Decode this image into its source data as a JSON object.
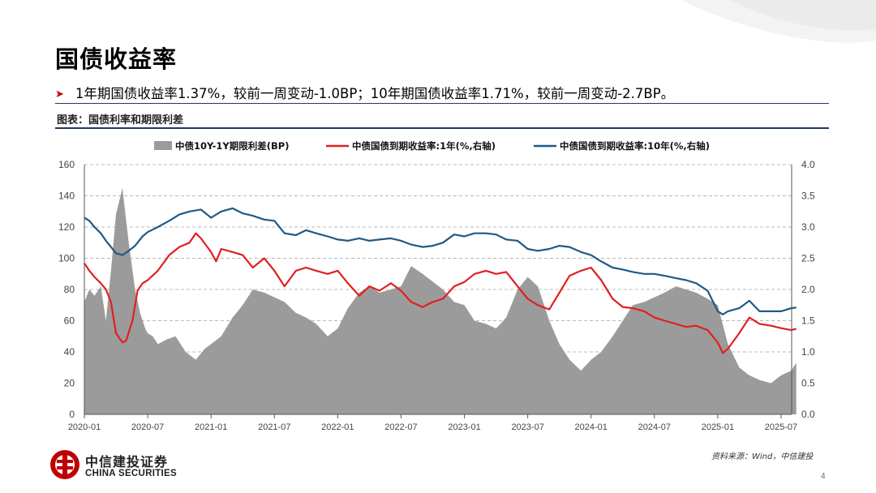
{
  "slide": {
    "title": "国债收益率",
    "bullet": "1年期国债收益率1.37%，较前一周变动-1.0BP；10年期国债收益率1.71%，较前一周变动-2.7BP。",
    "chart_caption": "图表：国债利率和期限利差",
    "source": "资料来源：Wind，中信建投",
    "page_number": "4",
    "logo_cn": "中信建投证券",
    "logo_en": "CHINA SECURITIES"
  },
  "colors": {
    "spread_fill": "#9b9b9b",
    "y1_line": "#e02020",
    "y10_line": "#1f5a87",
    "accent": "#c00000",
    "rule": "#1f3864"
  },
  "chart_data": {
    "type": "area",
    "x_ticks": [
      "2020-01",
      "2020-07",
      "2021-01",
      "2021-07",
      "2022-01",
      "2022-07",
      "2023-01",
      "2023-07",
      "2024-01",
      "2024-07",
      "2025-01",
      "2025-07"
    ],
    "x_range": [
      "2020-01",
      "2025-08"
    ],
    "y_left": {
      "range": [
        0,
        160
      ],
      "ticks": [
        "0",
        "20",
        "40",
        "60",
        "80",
        "100",
        "120",
        "140",
        "160"
      ]
    },
    "y_right": {
      "range": [
        0,
        4.0
      ],
      "ticks": [
        "0.0",
        "0.5",
        "1.0",
        "1.5",
        "2.0",
        "2.5",
        "3.0",
        "3.5",
        "4.0"
      ]
    },
    "grid": "horizontal-dashed",
    "legend_position": "top",
    "series": [
      {
        "name": "中债10Y-1Y期限利差(BP)",
        "type": "area",
        "axis": "left",
        "x": [
          2020.0,
          2020.04,
          2020.08,
          2020.13,
          2020.17,
          2020.21,
          2020.25,
          2020.3,
          2020.35,
          2020.4,
          2020.44,
          2020.48,
          2020.5,
          2020.54,
          2020.58,
          2020.65,
          2020.72,
          2020.8,
          2020.88,
          2020.95,
          2021.0,
          2021.08,
          2021.17,
          2021.25,
          2021.33,
          2021.42,
          2021.5,
          2021.58,
          2021.67,
          2021.75,
          2021.83,
          2021.92,
          2022.0,
          2022.08,
          2022.17,
          2022.25,
          2022.33,
          2022.42,
          2022.5,
          2022.58,
          2022.67,
          2022.75,
          2022.83,
          2022.92,
          2023.0,
          2023.08,
          2023.17,
          2023.25,
          2023.33,
          2023.42,
          2023.5,
          2023.58,
          2023.67,
          2023.75,
          2023.83,
          2023.92,
          2024.0,
          2024.08,
          2024.17,
          2024.25,
          2024.33,
          2024.42,
          2024.5,
          2024.58,
          2024.67,
          2024.75,
          2024.83,
          2024.92,
          2025.0,
          2025.08,
          2025.17,
          2025.25,
          2025.33,
          2025.42,
          2025.5,
          2025.58,
          2025.62
        ],
        "values": [
          72,
          80,
          76,
          82,
          60,
          92,
          128,
          145,
          110,
          80,
          65,
          55,
          52,
          50,
          45,
          48,
          50,
          40,
          35,
          42,
          45,
          50,
          62,
          70,
          80,
          78,
          75,
          72,
          65,
          62,
          58,
          50,
          55,
          68,
          78,
          82,
          78,
          80,
          82,
          95,
          90,
          85,
          80,
          72,
          70,
          60,
          58,
          55,
          62,
          80,
          88,
          82,
          60,
          45,
          35,
          28,
          35,
          40,
          50,
          60,
          70,
          72,
          75,
          78,
          82,
          80,
          78,
          74,
          70,
          45,
          30,
          25,
          22,
          20,
          25,
          28,
          33
        ]
      },
      {
        "name": "中债国债到期收益率:1年(%,右轴)",
        "type": "line",
        "axis": "right",
        "x": [
          2020.0,
          2020.04,
          2020.08,
          2020.13,
          2020.17,
          2020.21,
          2020.25,
          2020.3,
          2020.33,
          2020.38,
          2020.42,
          2020.46,
          2020.5,
          2020.58,
          2020.67,
          2020.75,
          2020.83,
          2020.88,
          2020.92,
          2021.0,
          2021.04,
          2021.08,
          2021.17,
          2021.25,
          2021.33,
          2021.42,
          2021.5,
          2021.58,
          2021.67,
          2021.75,
          2021.83,
          2021.92,
          2022.0,
          2022.08,
          2022.17,
          2022.25,
          2022.33,
          2022.42,
          2022.5,
          2022.58,
          2022.67,
          2022.75,
          2022.83,
          2022.92,
          2023.0,
          2023.08,
          2023.17,
          2023.25,
          2023.33,
          2023.42,
          2023.5,
          2023.58,
          2023.67,
          2023.75,
          2023.83,
          2023.92,
          2024.0,
          2024.08,
          2024.17,
          2024.25,
          2024.33,
          2024.42,
          2024.5,
          2024.58,
          2024.67,
          2024.75,
          2024.83,
          2024.92,
          2025.0,
          2025.04,
          2025.08,
          2025.17,
          2025.25,
          2025.33,
          2025.42,
          2025.5,
          2025.58,
          2025.62
        ],
        "values": [
          2.42,
          2.3,
          2.2,
          2.1,
          2.0,
          1.8,
          1.3,
          1.15,
          1.18,
          1.5,
          1.98,
          2.1,
          2.15,
          2.3,
          2.55,
          2.68,
          2.75,
          2.9,
          2.82,
          2.6,
          2.45,
          2.65,
          2.6,
          2.55,
          2.35,
          2.5,
          2.3,
          2.05,
          2.3,
          2.35,
          2.3,
          2.25,
          2.3,
          2.1,
          1.9,
          2.05,
          1.98,
          2.1,
          1.98,
          1.8,
          1.72,
          1.8,
          1.85,
          2.05,
          2.12,
          2.25,
          2.3,
          2.25,
          2.28,
          2.05,
          1.85,
          1.75,
          1.68,
          1.95,
          2.22,
          2.3,
          2.35,
          2.15,
          1.85,
          1.72,
          1.7,
          1.65,
          1.55,
          1.5,
          1.45,
          1.4,
          1.42,
          1.35,
          1.15,
          0.98,
          1.05,
          1.3,
          1.55,
          1.45,
          1.42,
          1.38,
          1.35,
          1.37
        ]
      },
      {
        "name": "中债国债到期收益率:10年(%,右轴)",
        "type": "line",
        "axis": "right",
        "x": [
          2020.0,
          2020.04,
          2020.08,
          2020.13,
          2020.17,
          2020.21,
          2020.25,
          2020.3,
          2020.35,
          2020.4,
          2020.46,
          2020.5,
          2020.58,
          2020.67,
          2020.75,
          2020.83,
          2020.92,
          2021.0,
          2021.08,
          2021.17,
          2021.25,
          2021.33,
          2021.42,
          2021.5,
          2021.58,
          2021.67,
          2021.75,
          2021.83,
          2021.92,
          2022.0,
          2022.08,
          2022.17,
          2022.25,
          2022.33,
          2022.42,
          2022.5,
          2022.58,
          2022.67,
          2022.75,
          2022.83,
          2022.92,
          2023.0,
          2023.08,
          2023.17,
          2023.25,
          2023.33,
          2023.42,
          2023.5,
          2023.58,
          2023.67,
          2023.75,
          2023.83,
          2023.92,
          2024.0,
          2024.08,
          2024.17,
          2024.25,
          2024.33,
          2024.42,
          2024.5,
          2024.58,
          2024.67,
          2024.75,
          2024.83,
          2024.92,
          2025.0,
          2025.04,
          2025.08,
          2025.17,
          2025.25,
          2025.33,
          2025.42,
          2025.5,
          2025.58,
          2025.62
        ],
        "values": [
          3.15,
          3.1,
          3.0,
          2.9,
          2.78,
          2.68,
          2.58,
          2.55,
          2.62,
          2.7,
          2.85,
          2.92,
          3.0,
          3.1,
          3.2,
          3.25,
          3.28,
          3.15,
          3.25,
          3.3,
          3.22,
          3.18,
          3.12,
          3.1,
          2.9,
          2.87,
          2.95,
          2.9,
          2.85,
          2.8,
          2.78,
          2.82,
          2.78,
          2.8,
          2.82,
          2.78,
          2.72,
          2.68,
          2.7,
          2.75,
          2.88,
          2.85,
          2.9,
          2.9,
          2.88,
          2.8,
          2.78,
          2.65,
          2.62,
          2.65,
          2.7,
          2.68,
          2.6,
          2.55,
          2.45,
          2.35,
          2.32,
          2.28,
          2.25,
          2.25,
          2.22,
          2.18,
          2.15,
          2.1,
          1.98,
          1.65,
          1.6,
          1.65,
          1.7,
          1.82,
          1.65,
          1.65,
          1.65,
          1.7,
          1.71
        ]
      }
    ]
  }
}
